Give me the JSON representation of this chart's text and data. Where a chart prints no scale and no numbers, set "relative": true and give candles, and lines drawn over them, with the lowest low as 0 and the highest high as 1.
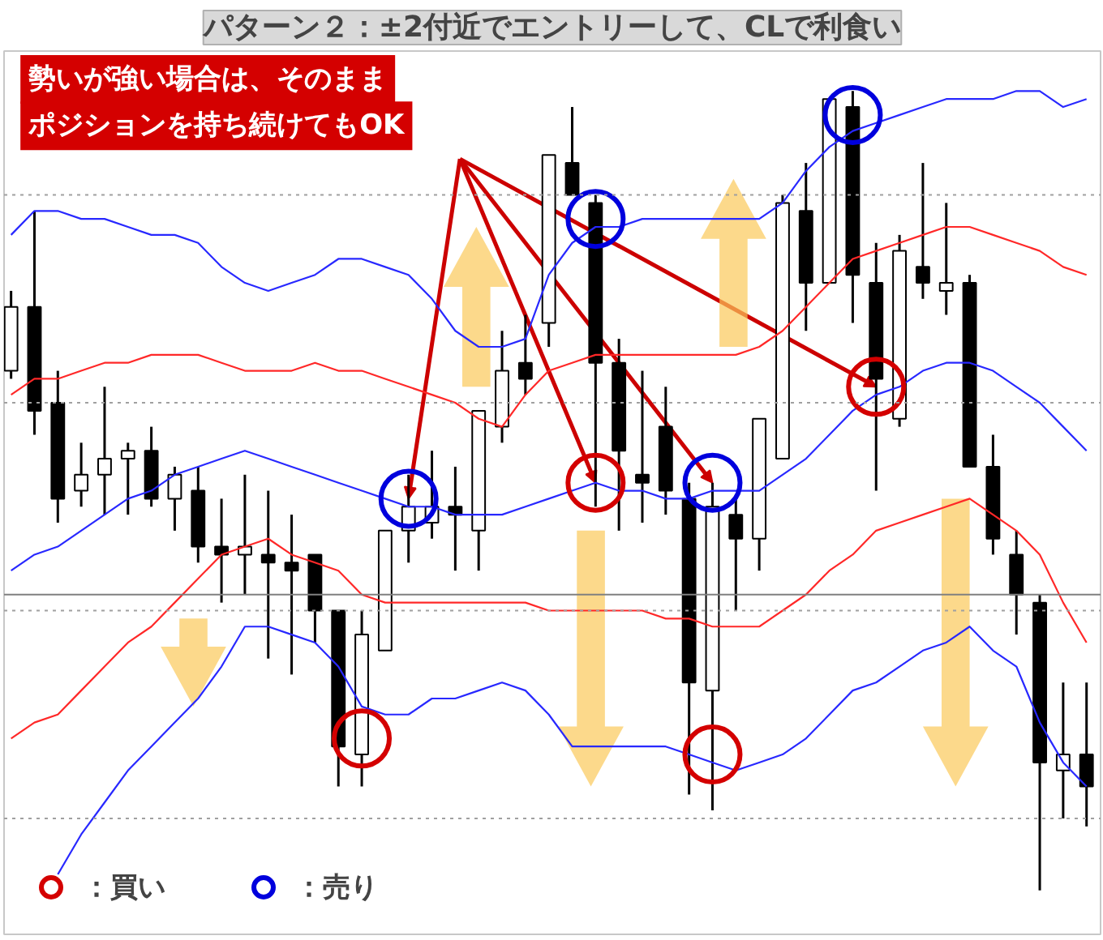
{
  "chart_data": {
    "type": "candlestick",
    "title": "パターン２：±2付近でエントリーして、CLで利食い",
    "relative": true,
    "tick_labels": false,
    "legend": "bottom left",
    "annotations": [
      "勢いが強い場合は、そのまま",
      "ポジションを持ち続けてもOK"
    ],
    "categories": [
      null,
      null,
      null,
      null,
      null,
      null,
      null,
      null,
      null,
      null,
      null,
      null,
      null,
      null,
      null,
      null,
      null,
      null,
      null,
      null,
      null,
      null,
      null,
      null,
      null,
      null,
      null,
      null,
      null,
      null,
      null,
      null,
      null,
      null,
      null,
      null,
      null,
      null,
      null,
      null,
      null,
      null,
      null,
      null,
      null,
      null,
      null
    ],
    "ohlc": [
      [
        0.65,
        0.75,
        0.64,
        0.73
      ],
      [
        0.73,
        0.85,
        0.57,
        0.6
      ],
      [
        0.61,
        0.65,
        0.46,
        0.49
      ],
      [
        0.5,
        0.56,
        0.48,
        0.52
      ],
      [
        0.52,
        0.63,
        0.47,
        0.54
      ],
      [
        0.54,
        0.56,
        0.47,
        0.55
      ],
      [
        0.55,
        0.58,
        0.48,
        0.49
      ],
      [
        0.49,
        0.53,
        0.45,
        0.52
      ],
      [
        0.5,
        0.53,
        0.41,
        0.43
      ],
      [
        0.43,
        0.49,
        0.36,
        0.42
      ],
      [
        0.42,
        0.52,
        0.37,
        0.43
      ],
      [
        0.42,
        0.5,
        0.29,
        0.41
      ],
      [
        0.41,
        0.47,
        0.27,
        0.4
      ],
      [
        0.42,
        0.42,
        0.31,
        0.35
      ],
      [
        0.35,
        0.35,
        0.13,
        0.18
      ],
      [
        0.17,
        0.35,
        0.13,
        0.32
      ],
      [
        0.3,
        0.45,
        0.3,
        0.45
      ],
      [
        0.45,
        0.52,
        0.41,
        0.48
      ],
      [
        0.46,
        0.55,
        0.44,
        0.48
      ],
      [
        0.48,
        0.53,
        0.4,
        0.47
      ],
      [
        0.45,
        0.6,
        0.4,
        0.6
      ],
      [
        0.58,
        0.7,
        0.56,
        0.65
      ],
      [
        0.66,
        0.72,
        0.62,
        0.64
      ],
      [
        0.71,
        0.92,
        0.68,
        0.92
      ],
      [
        0.91,
        0.98,
        0.87,
        0.87
      ],
      [
        0.86,
        0.87,
        0.48,
        0.66
      ],
      [
        0.66,
        0.69,
        0.45,
        0.55
      ],
      [
        0.52,
        0.65,
        0.46,
        0.51
      ],
      [
        0.58,
        0.63,
        0.47,
        0.5
      ],
      [
        0.49,
        0.51,
        0.12,
        0.26
      ],
      [
        0.25,
        0.51,
        0.1,
        0.48
      ],
      [
        0.47,
        0.49,
        0.35,
        0.44
      ],
      [
        0.44,
        0.59,
        0.4,
        0.59
      ],
      [
        0.54,
        0.87,
        0.54,
        0.86
      ],
      [
        0.85,
        0.91,
        0.7,
        0.76
      ],
      [
        0.76,
        0.99,
        0.76,
        0.99
      ],
      [
        0.98,
        1.0,
        0.71,
        0.77
      ],
      [
        0.76,
        0.81,
        0.5,
        0.64
      ],
      [
        0.59,
        0.82,
        0.58,
        0.8
      ],
      [
        0.78,
        0.91,
        0.74,
        0.76
      ],
      [
        0.75,
        0.86,
        0.72,
        0.76
      ],
      [
        0.76,
        0.77,
        0.53,
        0.53
      ],
      [
        0.53,
        0.57,
        0.42,
        0.44
      ],
      [
        0.42,
        0.45,
        0.32,
        0.37
      ],
      [
        0.36,
        0.37,
        0.0,
        0.16
      ],
      [
        0.15,
        0.26,
        0.09,
        0.17
      ],
      [
        0.17,
        0.26,
        0.08,
        0.13
      ]
    ],
    "series": [
      {
        "type": "line",
        "color": "#2828ff",
        "values": [
          0.82,
          0.85,
          0.85,
          0.84,
          0.84,
          0.83,
          0.82,
          0.82,
          0.81,
          0.78,
          0.76,
          0.75,
          0.76,
          0.77,
          0.79,
          0.79,
          0.78,
          0.77,
          0.74,
          0.7,
          0.68,
          0.68,
          0.69,
          0.77,
          0.81,
          0.83,
          0.83,
          0.84,
          0.84,
          0.84,
          0.84,
          0.84,
          0.84,
          0.86,
          0.9,
          0.93,
          0.95,
          0.96,
          0.97,
          0.98,
          0.99,
          0.99,
          0.99,
          1.0,
          1.0,
          0.98,
          0.99
        ]
      },
      {
        "type": "line",
        "color": "#ff2828",
        "values": [
          0.62,
          0.64,
          0.64,
          0.65,
          0.66,
          0.66,
          0.67,
          0.67,
          0.67,
          0.66,
          0.65,
          0.65,
          0.65,
          0.66,
          0.65,
          0.65,
          0.64,
          0.63,
          0.62,
          0.61,
          0.59,
          0.58,
          0.62,
          0.65,
          0.66,
          0.67,
          0.67,
          0.67,
          0.67,
          0.67,
          0.67,
          0.67,
          0.68,
          0.7,
          0.73,
          0.76,
          0.79,
          0.8,
          0.81,
          0.82,
          0.83,
          0.83,
          0.82,
          0.81,
          0.8,
          0.78,
          0.77
        ]
      },
      {
        "type": "line",
        "color": "#2828ff",
        "values": [
          0.4,
          0.42,
          0.43,
          0.45,
          0.47,
          0.49,
          0.5,
          0.52,
          0.53,
          0.54,
          0.55,
          0.54,
          0.53,
          0.52,
          0.51,
          0.5,
          0.49,
          0.48,
          0.48,
          0.47,
          0.47,
          0.47,
          0.48,
          0.49,
          0.5,
          0.51,
          0.5,
          0.5,
          0.49,
          0.49,
          0.5,
          0.5,
          0.5,
          0.52,
          0.54,
          0.57,
          0.6,
          0.62,
          0.63,
          0.65,
          0.66,
          0.66,
          0.65,
          0.63,
          0.61,
          0.58,
          0.55
        ]
      },
      {
        "type": "line",
        "color": "#ff2828",
        "values": [
          0.19,
          0.21,
          0.22,
          0.25,
          0.28,
          0.31,
          0.33,
          0.36,
          0.39,
          0.42,
          0.43,
          0.44,
          0.42,
          0.41,
          0.4,
          0.37,
          0.36,
          0.36,
          0.36,
          0.36,
          0.36,
          0.36,
          0.36,
          0.35,
          0.35,
          0.35,
          0.35,
          0.35,
          0.34,
          0.34,
          0.33,
          0.33,
          0.33,
          0.35,
          0.37,
          0.4,
          0.42,
          0.45,
          0.46,
          0.47,
          0.48,
          0.49,
          0.47,
          0.45,
          0.42,
          0.36,
          0.31
        ]
      },
      {
        "type": "line",
        "color": "#2828ff",
        "values": [
          null,
          null,
          0.02,
          0.07,
          0.11,
          0.15,
          0.18,
          0.21,
          0.24,
          0.28,
          0.33,
          0.33,
          0.32,
          0.31,
          0.28,
          0.23,
          0.22,
          0.22,
          0.24,
          0.24,
          0.25,
          0.26,
          0.25,
          0.22,
          0.18,
          0.18,
          0.18,
          0.18,
          0.18,
          0.17,
          0.16,
          0.15,
          0.16,
          0.17,
          0.19,
          0.22,
          0.25,
          0.26,
          0.28,
          0.3,
          0.31,
          0.33,
          0.3,
          0.28,
          0.21,
          0.16,
          0.13
        ]
      },
      {
        "type": "scatter",
        "name": "：買い",
        "marker": "circle",
        "color": "#d40000",
        "values": [
          null,
          null,
          null,
          null,
          null,
          null,
          null,
          null,
          null,
          null,
          null,
          null,
          null,
          null,
          null,
          0.19,
          null,
          null,
          null,
          null,
          null,
          null,
          null,
          null,
          null,
          0.51,
          null,
          null,
          null,
          null,
          0.17,
          null,
          null,
          null,
          null,
          null,
          null,
          0.63,
          null,
          null,
          null,
          null,
          null,
          null,
          null,
          null,
          null
        ]
      },
      {
        "type": "scatter",
        "name": "：売り",
        "marker": "circle",
        "color": "#0000dd",
        "values": [
          null,
          null,
          null,
          null,
          null,
          null,
          null,
          null,
          null,
          null,
          null,
          null,
          null,
          null,
          null,
          null,
          null,
          0.49,
          null,
          null,
          null,
          null,
          null,
          null,
          null,
          0.84,
          null,
          null,
          null,
          null,
          0.51,
          null,
          null,
          null,
          null,
          null,
          0.97,
          null,
          null,
          null,
          null,
          null,
          null,
          null,
          null,
          null,
          null
        ]
      }
    ],
    "ref_lines": [
      {
        "axis": "y",
        "value": 0.87,
        "color": "#a0a0a0",
        "line_style": "dotted"
      },
      {
        "axis": "y",
        "value": 0.61,
        "color": "#a0a0a0",
        "line_style": "dotted"
      },
      {
        "axis": "y",
        "value": 0.37,
        "color": "#808080",
        "line_style": "solid"
      },
      {
        "axis": "y",
        "value": 0.35,
        "color": "#a0a0a0",
        "line_style": "dotted"
      },
      {
        "axis": "y",
        "value": 0.09,
        "color": "#a0a0a0",
        "line_style": "dotted"
      }
    ]
  }
}
